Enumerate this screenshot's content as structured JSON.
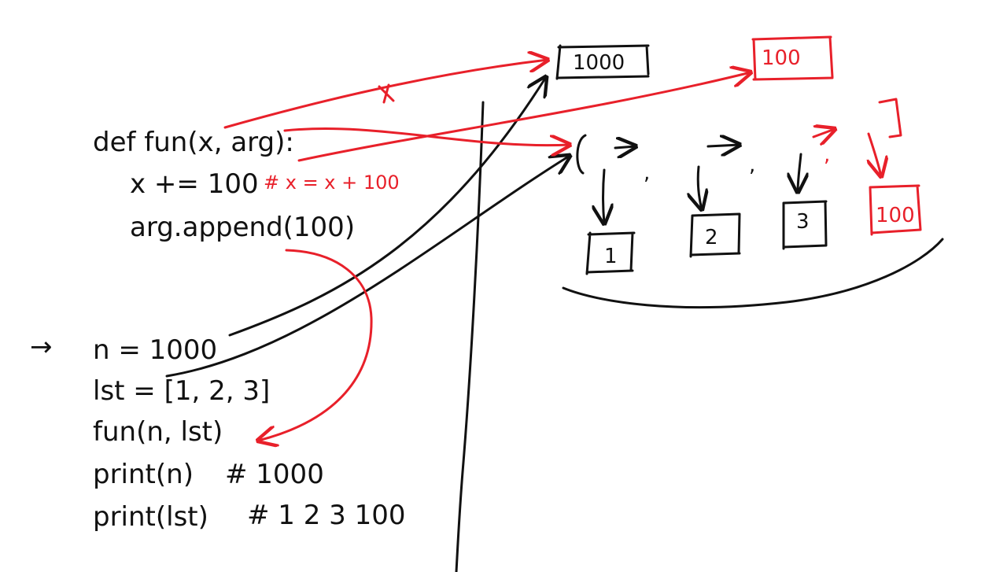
{
  "colors": {
    "ink": "#111111",
    "accent": "#e8202a"
  },
  "function_code": {
    "line1": "def fun(x, arg):",
    "line2": "x += 100",
    "line2_comment": "# x = x + 100",
    "line3": "arg.append(100)"
  },
  "main_code": {
    "pointer": "→",
    "line1": "n = 1000",
    "line2": "lst = [1, 2, 3]",
    "line3": "fun(n, lst)",
    "line4": "print(n)",
    "line4_comment": "# 1000",
    "line5": "print(lst)",
    "line5_comment": "# 1 2 3 100"
  },
  "memory": {
    "int_value": "1000",
    "new_int_value": "100",
    "list_items": [
      "1",
      "2",
      "3"
    ],
    "appended_item": "100",
    "list_comma": ","
  }
}
